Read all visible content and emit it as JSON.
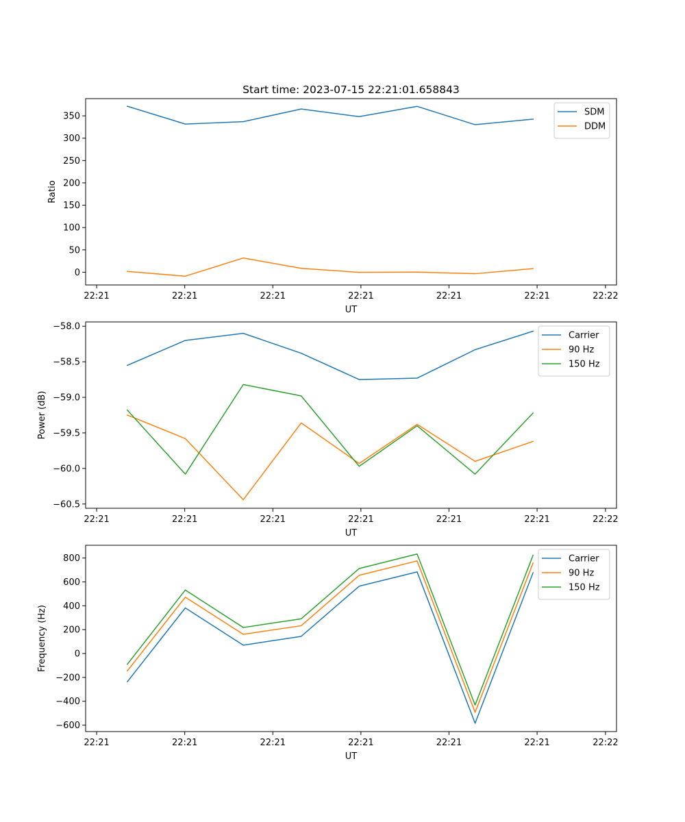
{
  "figure_title": "Start time: 2023-07-15 22:21:01.658843",
  "colors": {
    "blue": "#1f77b4",
    "orange": "#ff7f0e",
    "green": "#2ca02c"
  },
  "chart_data": [
    {
      "type": "line",
      "title": "Start time: 2023-07-15 22:21:01.658843",
      "xlabel": "UT",
      "ylabel": "Ratio",
      "x": [
        1,
        2,
        3,
        4,
        5,
        6,
        7,
        8
      ],
      "xlim": [
        0.28,
        9.44
      ],
      "xticks": [
        0.47,
        1.99,
        3.51,
        5.03,
        6.55,
        8.07,
        9.25
      ],
      "xtick_labels": [
        "22:21",
        "22:21",
        "22:21",
        "22:21",
        "22:21",
        "22:21",
        "22:22"
      ],
      "ylim": [
        -28.5,
        388.5
      ],
      "yticks": [
        0,
        50,
        100,
        150,
        200,
        250,
        300,
        350
      ],
      "ytick_labels": [
        "0",
        "50",
        "100",
        "150",
        "200",
        "250",
        "300",
        "350"
      ],
      "legend_position": "top-right",
      "series": [
        {
          "name": "SDM",
          "color": "#1f77b4",
          "values": [
            371.5,
            331.6,
            337.0,
            365.3,
            348.2,
            371.2,
            330.2,
            342.6
          ]
        },
        {
          "name": "DDM",
          "color": "#ff7f0e",
          "values": [
            1.8,
            -8.9,
            31.8,
            8.6,
            -0.3,
            0.2,
            -3.3,
            8.1
          ]
        }
      ]
    },
    {
      "type": "line",
      "xlabel": "UT",
      "ylabel": "Power (dB)",
      "x": [
        1,
        2,
        3,
        4,
        5,
        6,
        7,
        8
      ],
      "xlim": [
        0.28,
        9.44
      ],
      "xticks": [
        0.47,
        1.99,
        3.51,
        5.03,
        6.55,
        8.07,
        9.25
      ],
      "xtick_labels": [
        "22:21",
        "22:21",
        "22:21",
        "22:21",
        "22:21",
        "22:21",
        "22:22"
      ],
      "ylim": [
        -60.56,
        -57.94
      ],
      "yticks": [
        -60.5,
        -60.0,
        -59.5,
        -59.0,
        -58.5,
        -58.0
      ],
      "ytick_labels": [
        "−60.5",
        "−60.0",
        "−59.5",
        "−59.0",
        "−58.5",
        "−58.0"
      ],
      "legend_position": "top-right",
      "series": [
        {
          "name": "Carrier",
          "color": "#1f77b4",
          "values": [
            -58.55,
            -58.2,
            -58.1,
            -58.38,
            -58.75,
            -58.73,
            -58.33,
            -58.07
          ]
        },
        {
          "name": "90 Hz",
          "color": "#ff7f0e",
          "values": [
            -59.25,
            -59.58,
            -60.44,
            -59.36,
            -59.93,
            -59.38,
            -59.9,
            -59.62
          ]
        },
        {
          "name": "150 Hz",
          "color": "#2ca02c",
          "values": [
            -59.18,
            -60.08,
            -58.82,
            -58.98,
            -59.97,
            -59.4,
            -60.08,
            -59.22
          ]
        }
      ]
    },
    {
      "type": "line",
      "xlabel": "UT",
      "ylabel": "Frequency (Hz)",
      "x": [
        1,
        2,
        3,
        4,
        5,
        6,
        7,
        8
      ],
      "xlim": [
        0.28,
        9.44
      ],
      "xticks": [
        0.47,
        1.99,
        3.51,
        5.03,
        6.55,
        8.07,
        9.25
      ],
      "xtick_labels": [
        "22:21",
        "22:21",
        "22:21",
        "22:21",
        "22:21",
        "22:21",
        "22:22"
      ],
      "ylim": [
        -654,
        907
      ],
      "yticks": [
        -600,
        -400,
        -200,
        0,
        200,
        400,
        600,
        800
      ],
      "ytick_labels": [
        "−600",
        "−400",
        "−200",
        "0",
        "200",
        "400",
        "600",
        "800"
      ],
      "legend_position": "top-right",
      "series": [
        {
          "name": "Carrier",
          "color": "#1f77b4",
          "values": [
            -236,
            382,
            70,
            144,
            564,
            684,
            -584,
            677
          ]
        },
        {
          "name": "90 Hz",
          "color": "#ff7f0e",
          "values": [
            -145,
            472,
            161,
            233,
            655,
            776,
            -493,
            758
          ]
        },
        {
          "name": "150 Hz",
          "color": "#2ca02c",
          "values": [
            -90,
            532,
            218,
            291,
            712,
            834,
            -432,
            823
          ]
        }
      ]
    }
  ]
}
